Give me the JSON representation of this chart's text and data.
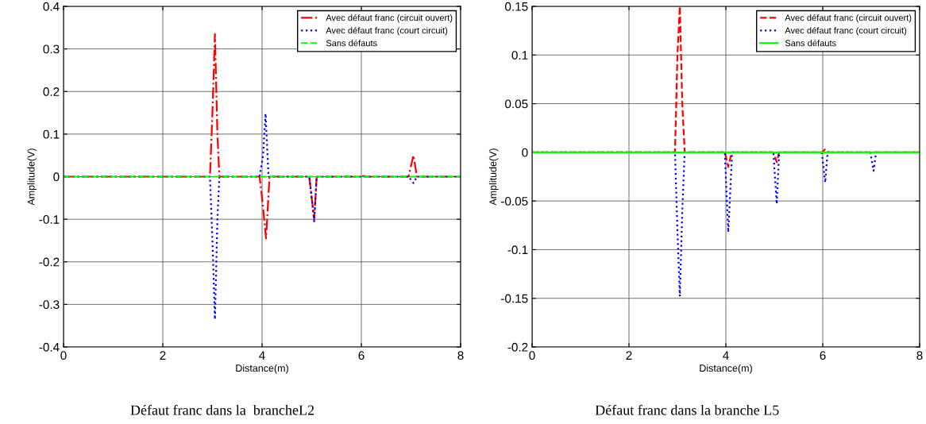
{
  "chart_data": [
    {
      "type": "line",
      "xlabel": "Distance(m)",
      "ylabel": "Amplitude(V)",
      "xlim": [
        0,
        8
      ],
      "xticks": [
        0,
        2,
        4,
        6,
        8
      ],
      "ylim": [
        -0.4,
        0.4
      ],
      "yticks": [
        -0.4,
        -0.3,
        -0.2,
        -0.1,
        0,
        0.1,
        0.2,
        0.3,
        0.4
      ],
      "grid": true,
      "legend": "top right",
      "annotations": [
        "Défaut franc dans la  brancheL2"
      ],
      "series": [
        {
          "name": "Avec défaut franc (circuit ouvert)",
          "color": "#ff0000",
          "line_style": "dashdot",
          "x": [
            0,
            2.95,
            3.0,
            3.05,
            3.1,
            3.14,
            3.95,
            4.0,
            4.08,
            4.15,
            4.95,
            5.0,
            5.05,
            5.1,
            6.0,
            6.05,
            6.1,
            6.95,
            7.05,
            7.12,
            8
          ],
          "values": [
            0,
            0,
            0.15,
            0.335,
            0.1,
            0,
            0,
            -0.05,
            -0.145,
            0,
            0,
            -0.05,
            -0.1,
            0,
            0,
            0.002,
            0,
            0,
            0.05,
            0,
            0
          ]
        },
        {
          "name": "Avec défaut franc (court circuit)",
          "color": "#0000ff",
          "line_style": "dotted",
          "x": [
            0,
            2.95,
            3.0,
            3.05,
            3.1,
            3.14,
            3.95,
            4.02,
            4.07,
            4.13,
            4.95,
            5.0,
            5.05,
            5.1,
            6.95,
            7.05,
            7.12,
            8
          ],
          "values": [
            0,
            0,
            -0.15,
            -0.335,
            -0.1,
            0,
            0,
            0.05,
            0.148,
            0,
            0,
            -0.05,
            -0.105,
            0,
            0,
            -0.015,
            0,
            0
          ]
        },
        {
          "name": "Sans défauts",
          "color": "#00ff00",
          "line_style": "dashed",
          "x": [
            0,
            8
          ],
          "values": [
            0,
            0
          ]
        }
      ]
    },
    {
      "type": "line",
      "xlabel": "Distance(m)",
      "ylabel": "Amplitude(V)",
      "xlim": [
        0,
        8
      ],
      "xticks": [
        0,
        2,
        4,
        6,
        8
      ],
      "ylim": [
        -0.2,
        0.15
      ],
      "yticks": [
        -0.2,
        -0.15,
        -0.1,
        -0.05,
        0,
        0.05,
        0.1,
        0.15
      ],
      "grid": true,
      "legend": "top right",
      "annotations": [
        "Défaut franc dans la branche L5"
      ],
      "series": [
        {
          "name": "Avec défaut franc (circuit ouvert)",
          "color": "#ff0000",
          "line_style": "dashed",
          "x": [
            0,
            2.95,
            3.0,
            3.05,
            3.1,
            3.15,
            3.98,
            4.05,
            4.12,
            4.98,
            5.05,
            5.1,
            5.98,
            6.05,
            6.12,
            8
          ],
          "values": [
            0,
            0,
            0.1,
            0.15,
            0.05,
            0,
            0,
            -0.015,
            0,
            0,
            -0.01,
            0,
            0,
            0.003,
            0,
            0
          ]
        },
        {
          "name": "Avec défaut franc (court circuit)",
          "color": "#0000ff",
          "line_style": "dotted",
          "x": [
            0,
            2.95,
            3.0,
            3.05,
            3.1,
            3.15,
            3.98,
            4.02,
            4.05,
            4.1,
            4.13,
            4.98,
            5.02,
            5.05,
            5.1,
            5.98,
            6.05,
            6.1,
            6.98,
            7.05,
            7.1,
            8
          ],
          "values": [
            0,
            0,
            -0.08,
            -0.148,
            -0.06,
            0,
            0,
            -0.05,
            -0.082,
            -0.03,
            0,
            0,
            -0.03,
            -0.053,
            0,
            0,
            -0.031,
            0,
            0,
            -0.019,
            0,
            0
          ]
        },
        {
          "name": "Sans défauts",
          "color": "#00ff00",
          "line_style": "solid",
          "x": [
            0,
            8
          ],
          "values": [
            0,
            0
          ]
        }
      ]
    }
  ]
}
